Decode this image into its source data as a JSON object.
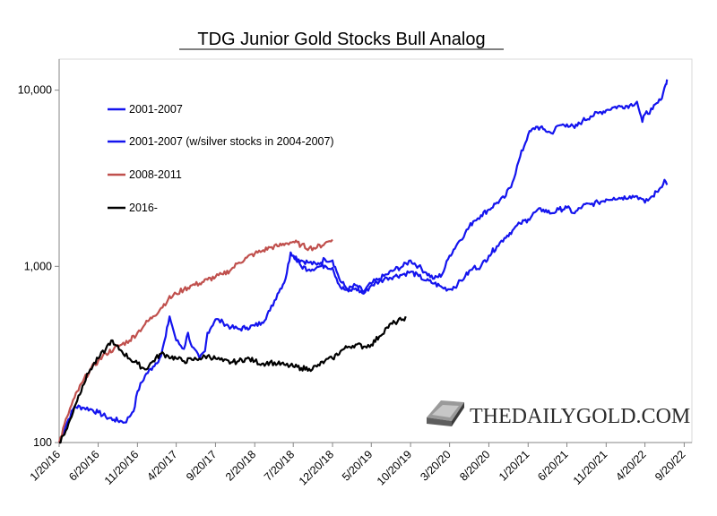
{
  "chart_data": {
    "type": "line",
    "title": "TDG Junior Gold Stocks Bull Analog",
    "xlabel": "",
    "ylabel": "",
    "y_scale": "log",
    "ylim": [
      100,
      15000
    ],
    "xlim": [
      "1/20/16",
      "10/20/22"
    ],
    "y_ticks": [
      100,
      1000,
      10000
    ],
    "y_tick_labels": [
      "100",
      "1,000",
      "10,000"
    ],
    "x_ticks": [
      "1/20/16",
      "6/20/16",
      "11/20/16",
      "4/20/17",
      "9/20/17",
      "2/20/18",
      "7/20/18",
      "12/20/18",
      "5/20/19",
      "10/20/19",
      "3/20/20",
      "8/20/20",
      "1/20/21",
      "6/20/21",
      "11/20/21",
      "4/20/22",
      "9/20/22"
    ],
    "grid": false,
    "legend_position": "top-left",
    "watermark": "THEDAILYGOLD.COM",
    "series": [
      {
        "name": "2001-2007",
        "color": "#1414ee",
        "points": [
          [
            "1/20/16",
            100
          ],
          [
            "2/20/16",
            130
          ],
          [
            "3/20/16",
            160
          ],
          [
            "4/20/16",
            158
          ],
          [
            "5/20/16",
            155
          ],
          [
            "6/20/16",
            148
          ],
          [
            "7/20/16",
            140
          ],
          [
            "8/20/16",
            135
          ],
          [
            "9/20/16",
            132
          ],
          [
            "10/1/16",
            130
          ],
          [
            "10/20/16",
            140
          ],
          [
            "11/10/16",
            160
          ],
          [
            "11/20/16",
            195
          ],
          [
            "12/20/16",
            240
          ],
          [
            "1/20/17",
            270
          ],
          [
            "2/20/17",
            310
          ],
          [
            "3/10/17",
            400
          ],
          [
            "3/25/17",
            520
          ],
          [
            "4/10/17",
            430
          ],
          [
            "4/20/17",
            380
          ],
          [
            "5/20/17",
            340
          ],
          [
            "6/5/17",
            420
          ],
          [
            "6/20/17",
            350
          ],
          [
            "7/20/17",
            300
          ],
          [
            "8/10/17",
            330
          ],
          [
            "8/20/17",
            420
          ],
          [
            "9/20/17",
            500
          ],
          [
            "10/20/17",
            480
          ],
          [
            "11/20/17",
            450
          ],
          [
            "12/20/17",
            440
          ],
          [
            "1/20/18",
            450
          ],
          [
            "2/20/18",
            460
          ],
          [
            "3/20/18",
            480
          ],
          [
            "4/20/18",
            560
          ],
          [
            "5/20/18",
            700
          ],
          [
            "6/20/18",
            850
          ],
          [
            "7/10/18",
            1200
          ],
          [
            "7/20/18",
            1150
          ],
          [
            "8/20/18",
            1080
          ],
          [
            "9/20/18",
            1050
          ],
          [
            "10/20/18",
            1020
          ],
          [
            "11/20/18",
            1100
          ],
          [
            "12/20/18",
            1080
          ],
          [
            "1/10/19",
            900
          ],
          [
            "1/20/19",
            820
          ],
          [
            "2/20/19",
            740
          ],
          [
            "3/20/19",
            780
          ],
          [
            "4/20/19",
            720
          ],
          [
            "5/20/19",
            800
          ],
          [
            "6/20/19",
            850
          ],
          [
            "7/20/19",
            900
          ],
          [
            "8/20/19",
            960
          ],
          [
            "9/20/19",
            1000
          ],
          [
            "10/20/19",
            1080
          ],
          [
            "11/20/19",
            1000
          ],
          [
            "12/20/19",
            920
          ],
          [
            "1/20/20",
            850
          ],
          [
            "2/20/20",
            900
          ],
          [
            "3/20/20",
            1150
          ],
          [
            "4/20/20",
            1350
          ],
          [
            "5/20/20",
            1550
          ],
          [
            "6/20/20",
            1800
          ],
          [
            "7/20/20",
            1950
          ],
          [
            "8/20/20",
            2100
          ],
          [
            "9/20/20",
            2300
          ],
          [
            "10/20/20",
            2450
          ],
          [
            "11/20/20",
            3000
          ],
          [
            "12/20/20",
            4200
          ],
          [
            "1/20/21",
            5600
          ],
          [
            "2/20/21",
            6200
          ],
          [
            "3/20/21",
            6000
          ],
          [
            "4/20/21",
            5700
          ],
          [
            "5/20/21",
            6300
          ],
          [
            "6/20/21",
            6400
          ],
          [
            "7/20/21",
            6100
          ],
          [
            "8/20/21",
            6700
          ],
          [
            "9/20/21",
            7100
          ],
          [
            "10/20/21",
            7400
          ],
          [
            "11/20/21",
            7700
          ],
          [
            "12/20/21",
            8000
          ],
          [
            "1/20/22",
            8100
          ],
          [
            "2/20/22",
            8200
          ],
          [
            "3/20/22",
            8600
          ],
          [
            "4/1/22",
            7400
          ],
          [
            "4/10/22",
            6600
          ],
          [
            "4/20/22",
            7300
          ],
          [
            "5/20/22",
            7800
          ],
          [
            "6/20/22",
            8800
          ],
          [
            "7/10/22",
            10800
          ],
          [
            "7/15/22",
            11500
          ]
        ]
      },
      {
        "name": "2001-2007 (w/silver stocks in 2004-2007)",
        "color": "#1414ee",
        "points": [
          [
            "7/20/18",
            1150
          ],
          [
            "8/20/18",
            1000
          ],
          [
            "9/20/18",
            960
          ],
          [
            "10/20/18",
            990
          ],
          [
            "11/20/18",
            1010
          ],
          [
            "12/20/18",
            980
          ],
          [
            "1/20/19",
            760
          ],
          [
            "2/20/19",
            720
          ],
          [
            "3/20/19",
            750
          ],
          [
            "4/20/19",
            700
          ],
          [
            "5/20/19",
            780
          ],
          [
            "6/20/19",
            820
          ],
          [
            "7/20/19",
            860
          ],
          [
            "8/20/19",
            880
          ],
          [
            "9/20/19",
            900
          ],
          [
            "10/20/19",
            930
          ],
          [
            "11/20/19",
            880
          ],
          [
            "12/20/19",
            830
          ],
          [
            "1/20/20",
            800
          ],
          [
            "2/20/20",
            760
          ],
          [
            "3/20/20",
            740
          ],
          [
            "4/20/20",
            790
          ],
          [
            "5/20/20",
            880
          ],
          [
            "6/20/20",
            980
          ],
          [
            "7/20/20",
            1000
          ],
          [
            "8/20/20",
            1150
          ],
          [
            "9/20/20",
            1300
          ],
          [
            "10/20/20",
            1450
          ],
          [
            "11/20/20",
            1600
          ],
          [
            "12/20/20",
            1750
          ],
          [
            "1/20/21",
            1850
          ],
          [
            "2/20/21",
            2050
          ],
          [
            "3/20/21",
            2100
          ],
          [
            "4/20/21",
            2000
          ],
          [
            "5/20/21",
            2100
          ],
          [
            "6/20/21",
            2150
          ],
          [
            "7/20/21",
            2000
          ],
          [
            "8/20/21",
            2200
          ],
          [
            "9/20/21",
            2250
          ],
          [
            "10/20/21",
            2300
          ],
          [
            "11/20/21",
            2400
          ],
          [
            "12/20/21",
            2450
          ],
          [
            "1/20/22",
            2450
          ],
          [
            "2/20/22",
            2500
          ],
          [
            "3/20/22",
            2500
          ],
          [
            "4/1/22",
            2450
          ],
          [
            "4/20/22",
            2300
          ],
          [
            "5/20/22",
            2500
          ],
          [
            "6/20/22",
            2800
          ],
          [
            "7/5/22",
            3100
          ],
          [
            "7/15/22",
            2900
          ]
        ]
      },
      {
        "name": "2008-2011",
        "color": "#c0504d",
        "points": [
          [
            "1/20/16",
            100
          ],
          [
            "2/20/16",
            140
          ],
          [
            "3/20/16",
            180
          ],
          [
            "4/20/16",
            220
          ],
          [
            "5/20/16",
            260
          ],
          [
            "6/20/16",
            290
          ],
          [
            "7/20/16",
            320
          ],
          [
            "8/20/16",
            340
          ],
          [
            "9/20/16",
            360
          ],
          [
            "10/20/16",
            380
          ],
          [
            "11/20/16",
            420
          ],
          [
            "12/20/16",
            470
          ],
          [
            "1/20/17",
            520
          ],
          [
            "2/20/17",
            580
          ],
          [
            "3/20/17",
            650
          ],
          [
            "4/20/17",
            700
          ],
          [
            "5/20/17",
            740
          ],
          [
            "6/20/17",
            780
          ],
          [
            "7/20/17",
            800
          ],
          [
            "8/20/17",
            840
          ],
          [
            "9/20/17",
            870
          ],
          [
            "10/20/17",
            900
          ],
          [
            "11/20/17",
            960
          ],
          [
            "12/20/17",
            1050
          ],
          [
            "1/20/18",
            1120
          ],
          [
            "2/20/18",
            1180
          ],
          [
            "3/20/18",
            1220
          ],
          [
            "4/20/18",
            1280
          ],
          [
            "5/20/18",
            1300
          ],
          [
            "6/20/18",
            1350
          ],
          [
            "7/20/18",
            1380
          ],
          [
            "8/20/18",
            1320
          ],
          [
            "9/20/18",
            1270
          ],
          [
            "10/20/18",
            1280
          ],
          [
            "11/20/18",
            1350
          ],
          [
            "12/20/18",
            1420
          ]
        ]
      },
      {
        "name": "2016-",
        "color": "#000000",
        "points": [
          [
            "1/20/16",
            100
          ],
          [
            "2/20/16",
            120
          ],
          [
            "3/20/16",
            160
          ],
          [
            "4/20/16",
            210
          ],
          [
            "5/20/16",
            260
          ],
          [
            "6/20/16",
            300
          ],
          [
            "7/20/16",
            340
          ],
          [
            "8/10/16",
            380
          ],
          [
            "8/20/16",
            360
          ],
          [
            "9/20/16",
            330
          ],
          [
            "10/20/16",
            300
          ],
          [
            "11/20/16",
            280
          ],
          [
            "12/20/16",
            260
          ],
          [
            "1/20/17",
            290
          ],
          [
            "2/20/17",
            320
          ],
          [
            "3/20/17",
            310
          ],
          [
            "4/20/17",
            300
          ],
          [
            "5/20/17",
            290
          ],
          [
            "6/20/17",
            295
          ],
          [
            "7/20/17",
            300
          ],
          [
            "8/20/17",
            310
          ],
          [
            "9/20/17",
            300
          ],
          [
            "10/20/17",
            290
          ],
          [
            "11/20/17",
            285
          ],
          [
            "12/20/17",
            290
          ],
          [
            "1/20/18",
            300
          ],
          [
            "2/20/18",
            290
          ],
          [
            "3/20/18",
            280
          ],
          [
            "4/20/18",
            285
          ],
          [
            "5/20/18",
            280
          ],
          [
            "6/20/18",
            275
          ],
          [
            "7/20/18",
            270
          ],
          [
            "8/20/18",
            265
          ],
          [
            "9/20/18",
            262
          ],
          [
            "10/20/18",
            270
          ],
          [
            "11/20/18",
            290
          ],
          [
            "12/20/18",
            300
          ],
          [
            "1/20/19",
            330
          ],
          [
            "2/20/19",
            350
          ],
          [
            "3/20/19",
            360
          ],
          [
            "4/20/19",
            350
          ],
          [
            "5/20/19",
            360
          ],
          [
            "6/20/19",
            400
          ],
          [
            "7/20/19",
            450
          ],
          [
            "8/20/19",
            480
          ],
          [
            "9/20/19",
            500
          ],
          [
            "10/1/19",
            520
          ]
        ]
      }
    ]
  }
}
